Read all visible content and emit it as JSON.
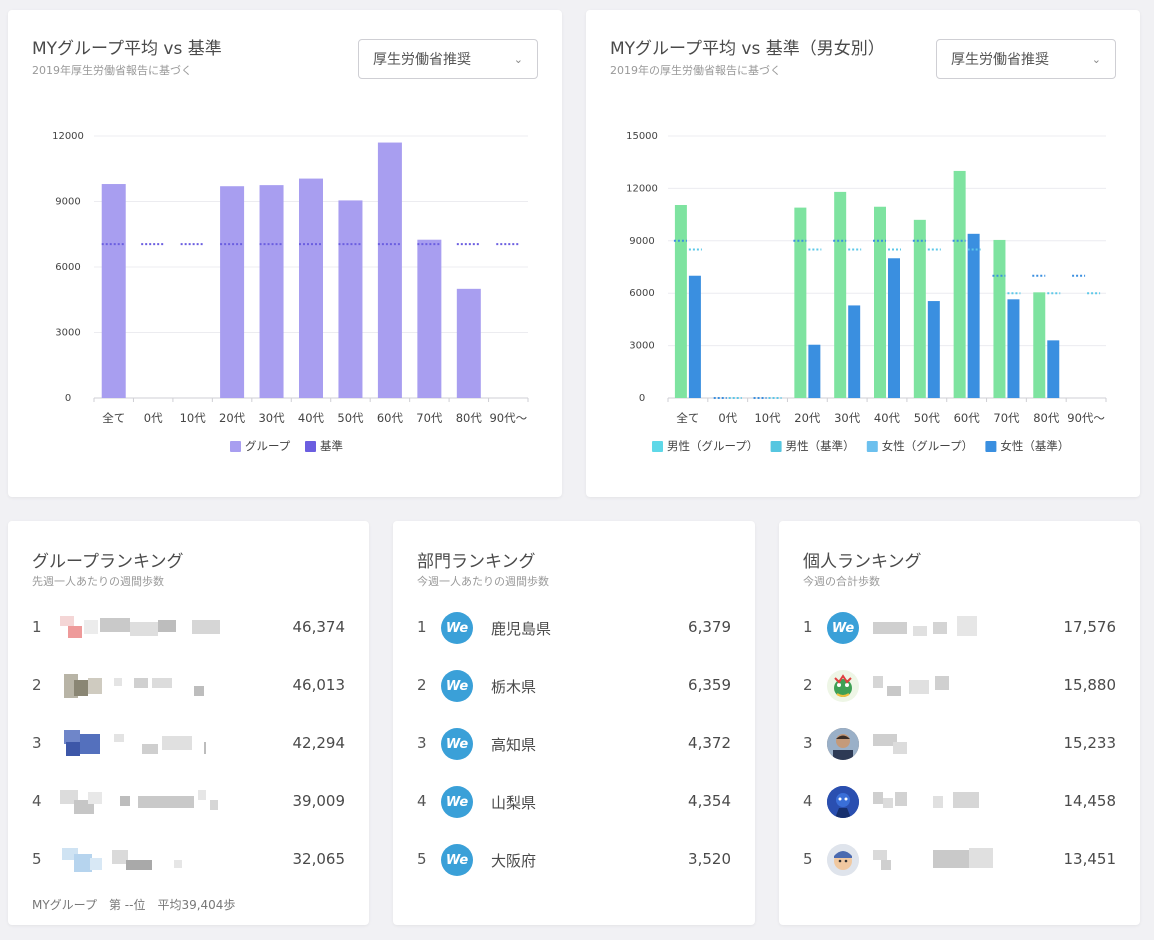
{
  "chart1": {
    "title": "MYグループ平均 vs 基準",
    "subtitle": "2019年厚生労働省報告に基づく",
    "select_value": "厚生労働省推奨",
    "chart_data": {
      "type": "bar",
      "categories": [
        "全て",
        "0代",
        "10代",
        "20代",
        "30代",
        "40代",
        "50代",
        "60代",
        "70代",
        "80代",
        "90代〜"
      ],
      "series": [
        {
          "name": "グループ",
          "type": "bar",
          "values": [
            9800,
            0,
            0,
            9700,
            9750,
            10050,
            9050,
            11700,
            7250,
            5000,
            0
          ],
          "color": "#a89ef0"
        },
        {
          "name": "基準",
          "type": "dotted-line",
          "values": [
            7050,
            7050,
            7050,
            7050,
            7050,
            7050,
            7050,
            7050,
            7050,
            7050,
            7050
          ],
          "color": "#6b5ee0"
        }
      ],
      "ylim": [
        0,
        12000
      ],
      "yticks": [
        0,
        3000,
        6000,
        9000,
        12000
      ],
      "legend": "bottom"
    }
  },
  "chart2": {
    "title": "MYグループ平均 vs 基準（男女別）",
    "subtitle": "2019年の厚生労働省報告に基づく",
    "select_value": "厚生労働省推奨",
    "chart_data": {
      "type": "bar",
      "categories": [
        "全て",
        "0代",
        "10代",
        "20代",
        "30代",
        "40代",
        "50代",
        "60代",
        "70代",
        "80代",
        "90代〜"
      ],
      "series": [
        {
          "name": "男性（グループ）",
          "type": "bar",
          "values": [
            11050,
            0,
            0,
            10900,
            11800,
            10950,
            10200,
            13000,
            9050,
            6050,
            0
          ],
          "color": "#7ee3a0"
        },
        {
          "name": "男性（基準）",
          "type": "dotted-line",
          "values": [
            9000,
            0,
            0,
            9000,
            9000,
            9000,
            9000,
            9000,
            7000,
            7000,
            7000
          ],
          "color": "#3a8fe0"
        },
        {
          "name": "女性（グループ）",
          "type": "dotted-line",
          "values": [
            8500,
            0,
            0,
            8500,
            8500,
            8500,
            8500,
            8500,
            6000,
            6000,
            6000
          ],
          "color": "#5cc8e8"
        },
        {
          "name": "女性（基準）",
          "type": "bar",
          "values": [
            7000,
            0,
            0,
            3050,
            5300,
            8000,
            5550,
            9400,
            5650,
            3300,
            0
          ],
          "color": "#3a8fe0"
        }
      ],
      "legend_colors": [
        "#5fd8e8",
        "#56c6e0",
        "#6cc0ee",
        "#3a8fe0"
      ],
      "ylim": [
        0,
        15000
      ],
      "yticks": [
        0,
        3000,
        6000,
        9000,
        12000,
        15000
      ],
      "legend": "bottom"
    }
  },
  "group_ranking": {
    "title": "グループランキング",
    "subtitle": "先週一人あたりの週間歩数",
    "items": [
      {
        "rank": "1",
        "value": "46,374"
      },
      {
        "rank": "2",
        "value": "46,013"
      },
      {
        "rank": "3",
        "value": "42,294"
      },
      {
        "rank": "4",
        "value": "39,009"
      },
      {
        "rank": "5",
        "value": "32,065"
      }
    ],
    "footer": "MYグループ　第 --位　平均39,404歩"
  },
  "dept_ranking": {
    "title": "部門ランキング",
    "subtitle": "今週一人あたりの週間歩数",
    "logo_text": "We",
    "items": [
      {
        "rank": "1",
        "name": "鹿児島県",
        "value": "6,379"
      },
      {
        "rank": "2",
        "name": "栃木県",
        "value": "6,359"
      },
      {
        "rank": "3",
        "name": "高知県",
        "value": "4,372"
      },
      {
        "rank": "4",
        "name": "山梨県",
        "value": "4,354"
      },
      {
        "rank": "5",
        "name": "大阪府",
        "value": "3,520"
      }
    ]
  },
  "personal_ranking": {
    "title": "個人ランキング",
    "subtitle": "今週の合計歩数",
    "logo_text": "We",
    "items": [
      {
        "rank": "1",
        "value": "17,576"
      },
      {
        "rank": "2",
        "value": "15,880"
      },
      {
        "rank": "3",
        "value": "15,233"
      },
      {
        "rank": "4",
        "value": "14,458"
      },
      {
        "rank": "5",
        "value": "13,451"
      }
    ]
  }
}
